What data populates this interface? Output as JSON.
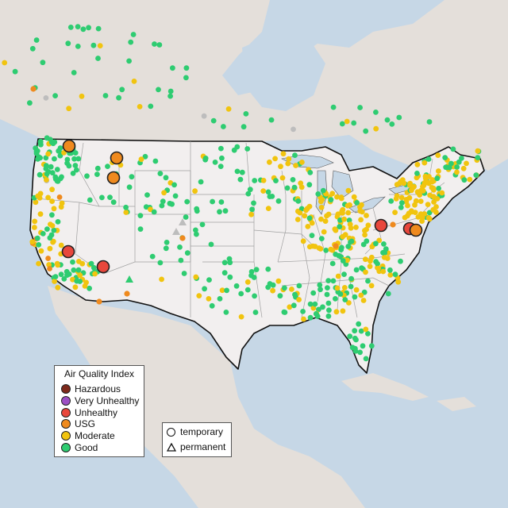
{
  "legend": {
    "title": "Air Quality Index",
    "categories": [
      {
        "label": "Hazardous",
        "color": "#7e2a1c"
      },
      {
        "label": "Very Unhealthy",
        "color": "#9c4fc4"
      },
      {
        "label": "Unhealthy",
        "color": "#e8473c"
      },
      {
        "label": "USG",
        "color": "#ef8a1e"
      },
      {
        "label": "Moderate",
        "color": "#f1c40f"
      },
      {
        "label": "Good",
        "color": "#2ecc71"
      }
    ]
  },
  "shape_legend": {
    "temporary": "temporary",
    "permanent": "permanent"
  },
  "colors": {
    "ocean": "#c6d7e6",
    "land_us": "#f0eded",
    "land_other": "#e2ddd8",
    "border": "#111111",
    "state_lines": "#9a9a9a",
    "no_data": "#bdbdbd"
  }
}
